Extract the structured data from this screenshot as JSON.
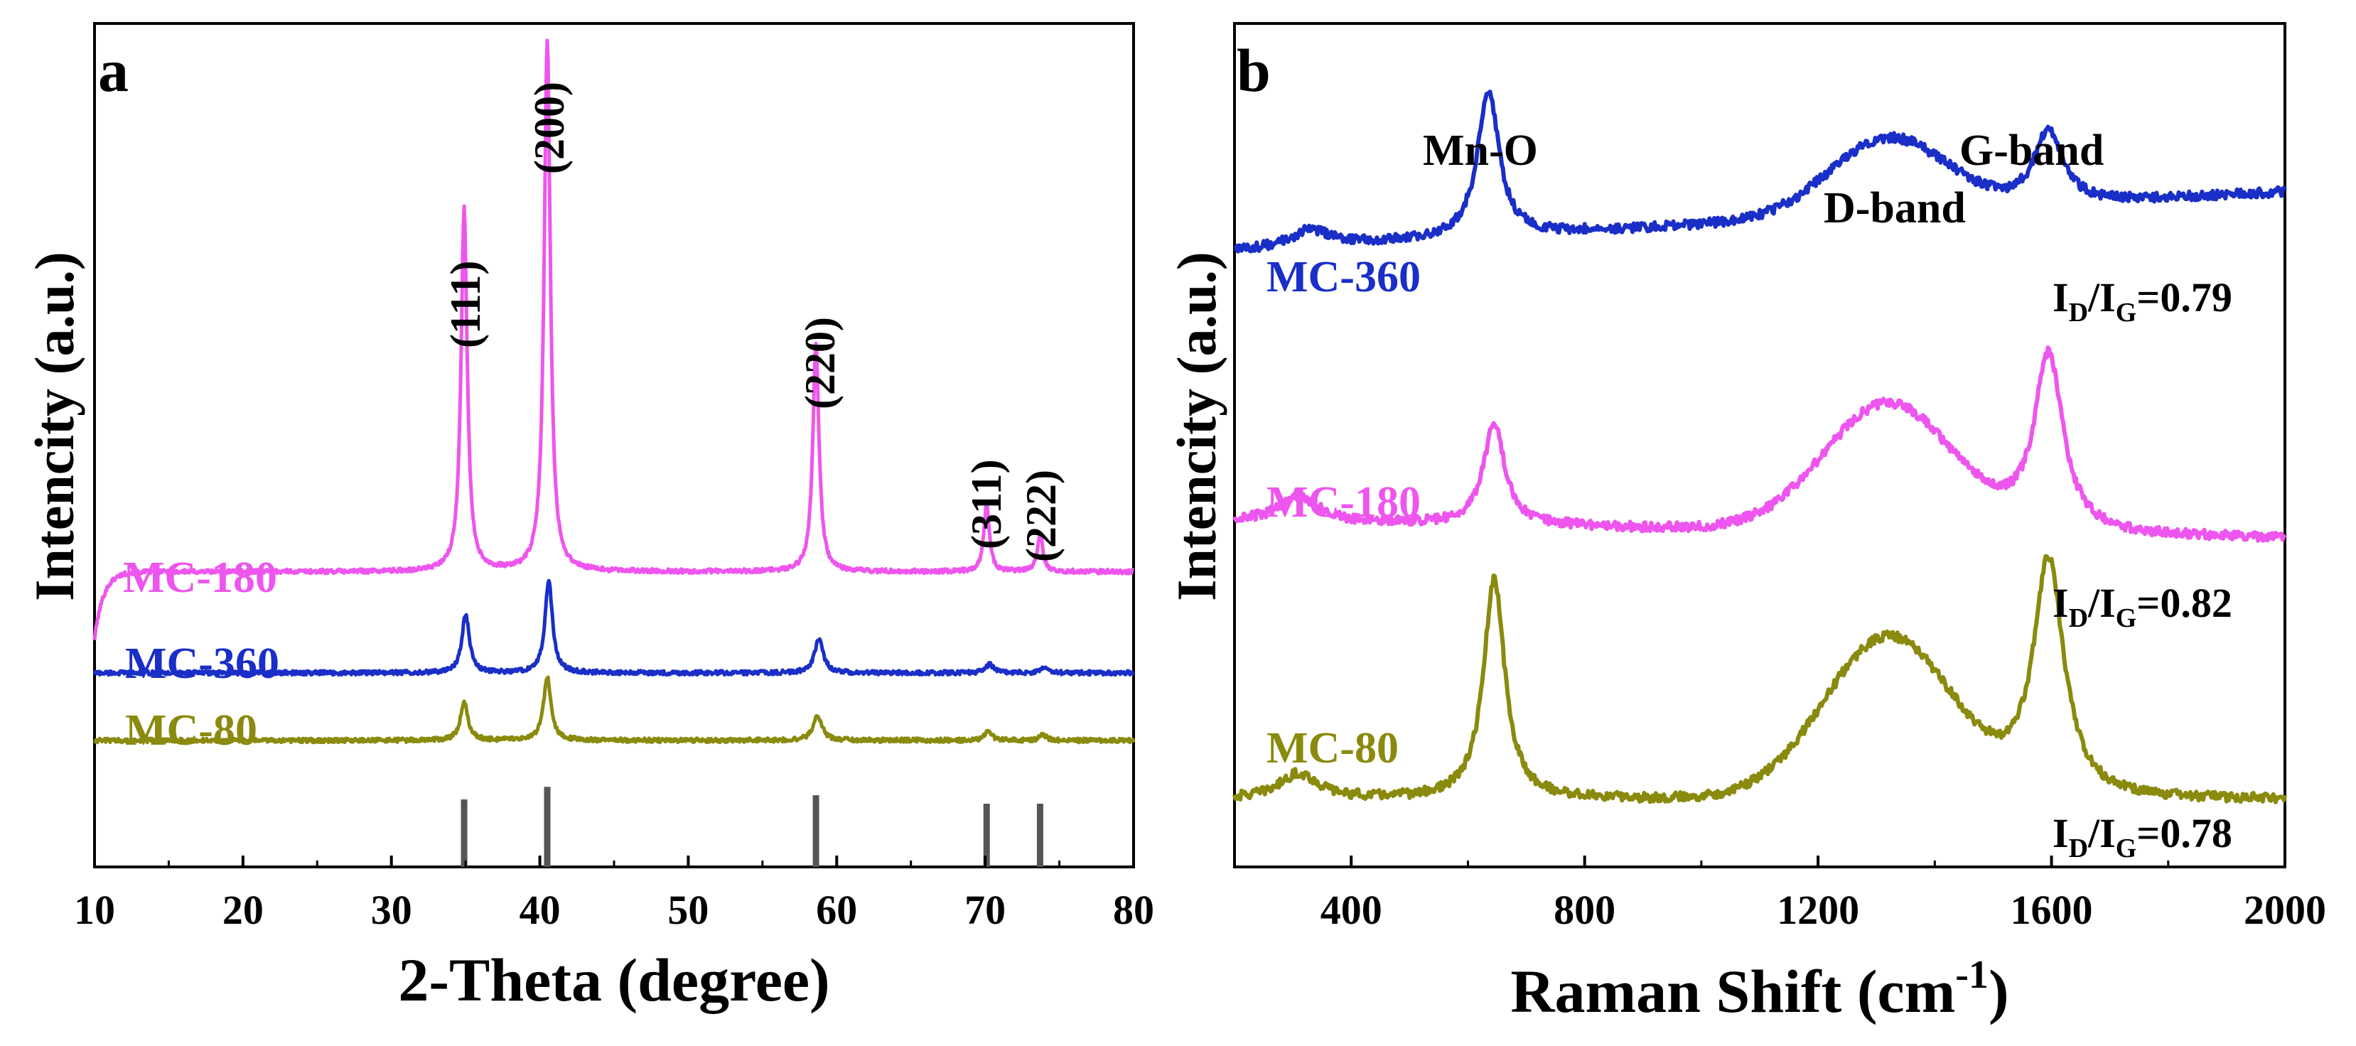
{
  "chart_data": [
    {
      "panel_label": "a",
      "type": "line",
      "title": "",
      "xlabel": "2-Theta (degree)",
      "ylabel": "Intencity (a.u.)",
      "xlim": [
        10,
        80
      ],
      "xticks": [
        10,
        20,
        30,
        40,
        50,
        60,
        70,
        80
      ],
      "ylim": [
        0,
        100
      ],
      "yticks_shown": false,
      "grid": false,
      "legend": "inline labels at left of each curve",
      "series": [
        {
          "name": "MC-180",
          "color": "#ee55ee",
          "baseline": 35,
          "left_edge": 27,
          "peaks": [
            {
              "center": 34.9,
              "height": 43,
              "width": 0.25
            },
            {
              "center": 40.5,
              "height": 63,
              "width": 0.25
            },
            {
              "center": 58.6,
              "height": 27,
              "width": 0.25
            },
            {
              "center": 70.1,
              "height": 8,
              "width": 0.22
            },
            {
              "center": 73.7,
              "height": 4.5,
              "width": 0.22
            }
          ]
        },
        {
          "name": "MC-360",
          "color": "#1a2ec8",
          "baseline": 23,
          "left_edge": 23,
          "peaks": [
            {
              "center": 35.0,
              "height": 7,
              "width": 0.3
            },
            {
              "center": 40.6,
              "height": 11,
              "width": 0.3
            },
            {
              "center": 58.8,
              "height": 4,
              "width": 0.35
            },
            {
              "center": 70.3,
              "height": 1,
              "width": 0.3
            },
            {
              "center": 74.0,
              "height": 0.6,
              "width": 0.3
            }
          ]
        },
        {
          "name": "MC-80",
          "color": "#8a8a0e",
          "baseline": 15,
          "left_edge": 15,
          "peaks": [
            {
              "center": 34.9,
              "height": 4.5,
              "width": 0.3
            },
            {
              "center": 40.5,
              "height": 7.5,
              "width": 0.3
            },
            {
              "center": 58.7,
              "height": 3,
              "width": 0.35
            },
            {
              "center": 70.2,
              "height": 1,
              "width": 0.3
            },
            {
              "center": 73.9,
              "height": 0.6,
              "width": 0.3
            }
          ]
        }
      ],
      "reference_lines": [
        {
          "x": 34.9,
          "height": 8
        },
        {
          "x": 40.5,
          "height": 9.5
        },
        {
          "x": 58.6,
          "height": 8.5
        },
        {
          "x": 70.1,
          "height": 7.5
        },
        {
          "x": 73.7,
          "height": 7.5
        }
      ],
      "annotations": [
        {
          "text": "(111)",
          "x": 34.9
        },
        {
          "text": "(200)",
          "x": 40.5
        },
        {
          "text": "(220)",
          "x": 58.6
        },
        {
          "text": "(311)",
          "x": 70.1
        },
        {
          "text": "(222)",
          "x": 73.9
        }
      ]
    },
    {
      "panel_label": "b",
      "type": "line",
      "title": "",
      "xlabel": "Raman Shift (cm",
      "xlabel_superscript": "-1",
      "xlabel_suffix": ")",
      "ylabel": "Intencity (a.u.)",
      "xlim": [
        200,
        2000
      ],
      "xticks": [
        400,
        800,
        1200,
        1600,
        2000
      ],
      "ylim": [
        0,
        100
      ],
      "yticks_shown": false,
      "grid": false,
      "legend": "inline labels at left of each curve",
      "band_labels": [
        "Mn-O",
        "D-band",
        "G-band"
      ],
      "series": [
        {
          "name": "MC-360",
          "color": "#1a2ec8",
          "id_ig": "0.79",
          "bands": [
            {
              "center": 330,
              "height": 2,
              "width": 40
            },
            {
              "center": 635,
              "height": 17.5,
              "width": 22
            },
            {
              "center": 1320,
              "height": 9,
              "width": 100
            },
            {
              "center": 1595,
              "height": 9,
              "width": 30
            }
          ],
          "base_start": 73,
          "base_end": 80
        },
        {
          "name": "MC-180",
          "color": "#ee55ee",
          "id_ig": "0.82",
          "bands": [
            {
              "center": 310,
              "height": 3,
              "width": 40
            },
            {
              "center": 645,
              "height": 12,
              "width": 22
            },
            {
              "center": 1320,
              "height": 15,
              "width": 110
            },
            {
              "center": 1595,
              "height": 21,
              "width": 30
            }
          ],
          "base_start": 41,
          "base_end": 39
        },
        {
          "name": "MC-80",
          "color": "#8a8a0e",
          "id_ig": "0.78",
          "bands": [
            {
              "center": 310,
              "height": 3,
              "width": 40
            },
            {
              "center": 645,
              "height": 26,
              "width": 22
            },
            {
              "center": 1320,
              "height": 19,
              "width": 110
            },
            {
              "center": 1595,
              "height": 28,
              "width": 32
            }
          ],
          "base_start": 8,
          "base_end": 8
        }
      ],
      "ratio_prefix_main": "I",
      "ratio_sub_d": "D",
      "ratio_sep": "/I",
      "ratio_sub_g": "G",
      "ratio_eq": "="
    }
  ]
}
